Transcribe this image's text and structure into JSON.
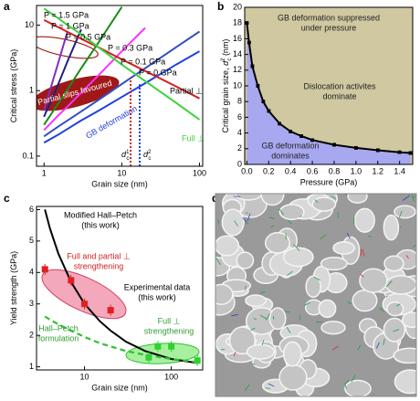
{
  "chart_data": [
    {
      "type": "line",
      "panel": "a",
      "xlabel": "Grain size (nm)",
      "ylabel": "Critical stress (GPa)",
      "xscale": "log",
      "yscale": "log",
      "xlim": [
        0.8,
        110
      ],
      "ylim": [
        0.07,
        20
      ],
      "xticks": [
        1,
        10,
        100
      ],
      "yticks": [
        0.1,
        1,
        10
      ],
      "series": [
        {
          "name": "P = 1.5 GPa",
          "color": "#8030c0",
          "x": [
            1,
            1.5,
            2
          ],
          "values": [
            0.5,
            2.5,
            8
          ]
        },
        {
          "name": "P = 1 GPa",
          "color": "#202080",
          "x": [
            1,
            1.5,
            2,
            3
          ],
          "values": [
            0.4,
            1.2,
            2.8,
            8.6
          ]
        },
        {
          "name": "P = 0.5 GPa",
          "color": "#1a8a1a",
          "x": [
            1,
            1.5,
            2,
            3,
            5,
            10
          ],
          "values": [
            0.3,
            0.62,
            1.04,
            2.2,
            5.4,
            19
          ]
        },
        {
          "name": "P = 0.3 GPa",
          "color": "#ff30ff",
          "x": [
            1,
            1.5,
            2,
            3,
            5,
            10,
            20
          ],
          "values": [
            0.25,
            0.41,
            0.57,
            0.93,
            1.7,
            4.0,
            9.1
          ]
        },
        {
          "name": "P = 0.1 GPa",
          "color": "#3050c0",
          "x": [
            1,
            1.5,
            2,
            3,
            5,
            10,
            20,
            50,
            100
          ],
          "values": [
            0.2,
            0.28,
            0.35,
            0.48,
            0.72,
            1.26,
            2.2,
            4.6,
            8.0
          ]
        },
        {
          "name": "GB deformation",
          "color": "#2040e0",
          "x": [
            1,
            1.5,
            2,
            3,
            5,
            10,
            20,
            50,
            100
          ],
          "values": [
            0.16,
            0.21,
            0.26,
            0.35,
            0.49,
            0.8,
            1.3,
            2.5,
            4.0
          ]
        },
        {
          "name": "Partial ⊥",
          "color": "#d42020",
          "x": [
            1,
            1.5,
            2,
            3,
            5,
            10,
            20,
            50,
            100
          ],
          "values": [
            12,
            9.4,
            7.9,
            6.2,
            4.6,
            3.0,
            2.0,
            1.16,
            0.76
          ]
        },
        {
          "name": "Full ⊥",
          "color": "#3cd23c",
          "x": [
            1,
            1.5,
            2,
            3,
            5,
            10,
            20,
            50,
            100
          ],
          "values": [
            18,
            12.9,
            10.0,
            7.3,
            4.6,
            2.5,
            1.4,
            0.65,
            0.36
          ]
        }
      ],
      "critical": [
        {
          "symbol": "d",
          "sub": "c",
          "sup": "1",
          "x": 13,
          "y": 1.6,
          "color": "#d42020"
        },
        {
          "symbol": "d",
          "sub": "c",
          "sup": "2",
          "x": 17,
          "y": 1.25,
          "color": "#2040e0"
        }
      ],
      "annotations": [
        "P = 0 GPa",
        "Partial slips favoured"
      ]
    },
    {
      "type": "area",
      "panel": "b",
      "xlabel": "Pressure (GPa)",
      "ylabel": "Critical grain size, ",
      "ylabel_symbol": {
        "symbol": "d",
        "sub": "c",
        "sup": "2"
      },
      "ylabel_unit": " (nm)",
      "xlim": [
        -0.02,
        1.52
      ],
      "ylim": [
        0,
        20
      ],
      "xticks": [
        {
          "value": 0,
          "label": "0.0"
        },
        0.2,
        0.4,
        0.6,
        0.8,
        {
          "value": 1,
          "label": "1.0"
        },
        1.2,
        1.4
      ],
      "yticks": [
        0,
        2,
        4,
        6,
        8,
        10,
        12,
        14,
        16,
        18,
        20
      ],
      "below_color": "#a8a8f0",
      "above_color": "#cfc8a0",
      "series": [
        {
          "color": "#000000",
          "x": [
            0,
            0.02,
            0.05,
            0.1,
            0.15,
            0.2,
            0.3,
            0.4,
            0.5,
            0.6,
            0.8,
            1.0,
            1.2,
            1.4,
            1.5
          ],
          "values": [
            18,
            15.5,
            12.5,
            10,
            8,
            6.8,
            5.2,
            4.2,
            3.6,
            3.1,
            2.5,
            2.1,
            1.8,
            1.55,
            1.45
          ]
        }
      ],
      "annotations": [
        "GB deformation suppressed",
        "under pressure",
        "Dislocation activites",
        "dominate",
        "GB deformation",
        "dominates"
      ]
    },
    {
      "type": "line",
      "panel": "c",
      "xlabel": "Grain size (nm)",
      "ylabel": "Yield strength (GPa)",
      "xscale": "log",
      "xlim": [
        2.8,
        230
      ],
      "ylim": [
        0.9,
        6.1
      ],
      "xticks": [
        10,
        100
      ],
      "yticks": [
        1,
        2,
        3,
        4,
        5,
        6
      ],
      "series": [
        {
          "style": "line",
          "color": "#000000",
          "x": [
            3.5,
            4,
            5,
            7,
            10,
            15,
            20,
            30,
            50,
            100,
            200
          ],
          "values": [
            6,
            5.4,
            4.6,
            3.7,
            3.0,
            2.45,
            2.15,
            1.8,
            1.5,
            1.25,
            1.12
          ]
        },
        {
          "style": "dashed",
          "color": "#30c030",
          "x": [
            3.5,
            4,
            5,
            7,
            10,
            15,
            20,
            30,
            50,
            100,
            200
          ],
          "values": [
            2.6,
            2.5,
            2.35,
            2.15,
            1.95,
            1.75,
            1.65,
            1.5,
            1.38,
            1.25,
            1.15
          ]
        },
        {
          "style": "markers",
          "color": "#e02020",
          "x": [
            3.5,
            7,
            10,
            20
          ],
          "values": [
            4.1,
            3.75,
            3.0,
            2.8
          ]
        },
        {
          "style": "markers",
          "color": "#30d030",
          "x": [
            55,
            70,
            100,
            200
          ],
          "values": [
            1.3,
            1.65,
            1.65,
            1.2
          ]
        }
      ],
      "annotations": [
        "Modified Hall–Petch",
        "(this work)",
        "Full and partial ⊥",
        "strengthening",
        "Experimental data",
        "(this work)",
        "Full ⊥",
        "strengthening",
        "Hall–Petch",
        "formulation"
      ]
    },
    {
      "type": "image",
      "panel": "d"
    }
  ]
}
